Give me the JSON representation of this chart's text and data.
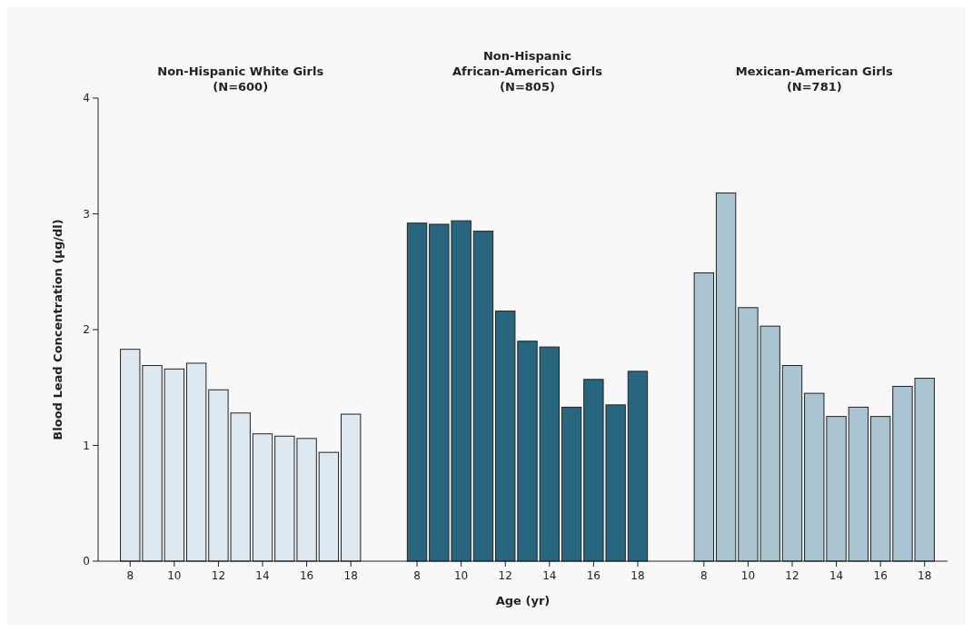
{
  "chart_data": {
    "type": "bar",
    "xlabel": "Age (yr)",
    "ylabel": "Blood Lead Concentration (µg/dl)",
    "categories": [
      "8",
      null,
      "10",
      null,
      "12",
      null,
      "14",
      null,
      "16",
      null,
      "18",
      null,
      null,
      "8",
      null,
      "10",
      null,
      "12",
      null,
      "14",
      null,
      "16",
      null,
      "18",
      null,
      null,
      "8",
      null,
      "10",
      null,
      "12",
      null,
      "14",
      null,
      "16",
      null,
      "18"
    ],
    "series": [
      {
        "color": "#dde8f0",
        "values": [
          1.83,
          1.69,
          1.66,
          1.71,
          1.48,
          1.28,
          1.1,
          1.08,
          1.06,
          0.94,
          1.27,
          null,
          null,
          null,
          null,
          null,
          null,
          null,
          null,
          null,
          null,
          null,
          null,
          null,
          null,
          null,
          null,
          null,
          null,
          null,
          null,
          null,
          null,
          null,
          null,
          null,
          null
        ]
      },
      {
        "color": "#27667f",
        "values": [
          null,
          null,
          null,
          null,
          null,
          null,
          null,
          null,
          null,
          null,
          null,
          null,
          null,
          2.92,
          2.91,
          2.94,
          2.85,
          2.16,
          1.9,
          1.85,
          1.33,
          1.57,
          1.35,
          1.64,
          null,
          null,
          null,
          null,
          null,
          null,
          null,
          null,
          null,
          null,
          null,
          null,
          null
        ]
      },
      {
        "color": "#abc4d2",
        "values": [
          null,
          null,
          null,
          null,
          null,
          null,
          null,
          null,
          null,
          null,
          null,
          null,
          null,
          null,
          null,
          null,
          null,
          null,
          null,
          null,
          null,
          null,
          null,
          null,
          null,
          null,
          2.49,
          3.18,
          2.19,
          2.03,
          1.69,
          1.45,
          1.25,
          1.33,
          1.25,
          1.51,
          1.58
        ]
      }
    ],
    "annotations": [
      "Non-Hispanic White Girls (N=600)",
      "Non-Hispanic African-American Girls (N=805)",
      "Mexican-American Girls (N=781)"
    ],
    "ylim": [
      0,
      4
    ],
    "yticks": [
      0,
      1,
      2,
      3,
      4
    ],
    "grid": false
  }
}
